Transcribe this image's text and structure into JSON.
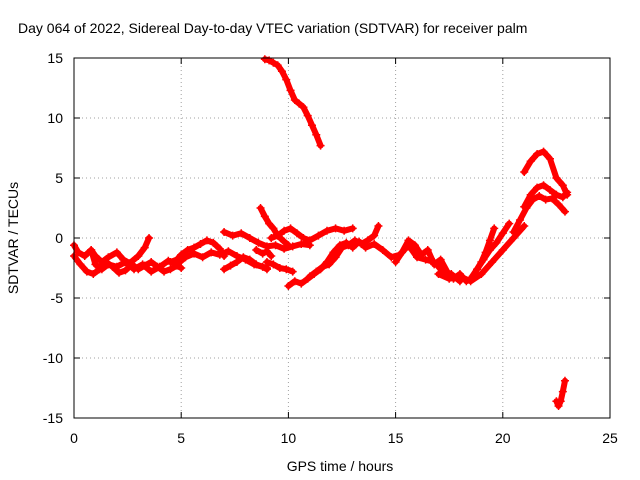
{
  "chart_data": {
    "type": "scatter",
    "title": "Day 064 of 2022, Sidereal Day-to-day VTEC variation (SDTVAR) for receiver palm",
    "xlabel": "GPS time / hours",
    "ylabel": "SDTVAR / TECUs",
    "xlim": [
      0,
      25
    ],
    "ylim": [
      -15,
      15
    ],
    "xticks": [
      0,
      5,
      10,
      15,
      20,
      25
    ],
    "yticks": [
      -15,
      -10,
      -5,
      0,
      5,
      10,
      15
    ],
    "grid": true,
    "marker_color": "#ff0000",
    "series": [
      {
        "name": "track-1",
        "x": [
          0.0,
          0.3,
          0.6,
          0.9,
          1.2,
          1.5,
          1.8,
          2.1,
          2.4,
          2.7,
          3.0,
          3.3,
          3.6,
          3.9,
          4.2,
          4.5,
          4.8,
          5.0
        ],
        "y": [
          -1.5,
          -2.2,
          -2.8,
          -3.0,
          -2.6,
          -2.0,
          -2.4,
          -2.9,
          -2.7,
          -2.2,
          -2.6,
          -2.3,
          -2.0,
          -2.4,
          -2.8,
          -2.6,
          -2.3,
          -2.5
        ]
      },
      {
        "name": "track-2",
        "x": [
          0.0,
          0.2,
          0.5,
          0.8,
          1.0,
          1.3,
          1.6,
          2.0,
          2.3,
          2.6,
          3.0,
          3.3,
          3.5
        ],
        "y": [
          -0.6,
          -1.2,
          -1.5,
          -1.0,
          -1.5,
          -2.0,
          -1.6,
          -1.2,
          -1.8,
          -2.1,
          -1.5,
          -0.8,
          0.0
        ]
      },
      {
        "name": "track-3",
        "x": [
          0.8,
          1.0,
          1.3,
          1.6,
          2.0,
          2.4,
          2.8,
          3.2,
          3.6,
          4.0,
          4.4,
          4.8,
          5.2,
          5.6,
          6.0,
          6.4,
          6.8,
          7.2,
          7.6,
          8.0,
          8.4,
          8.8,
          9.0
        ],
        "y": [
          -1.0,
          -2.2,
          -2.6,
          -2.2,
          -2.4,
          -2.0,
          -2.6,
          -2.2,
          -2.8,
          -2.4,
          -1.9,
          -2.2,
          -1.6,
          -1.3,
          -1.6,
          -1.2,
          -1.4,
          -1.1,
          -1.5,
          -1.8,
          -2.2,
          -2.4,
          -2.6
        ]
      },
      {
        "name": "track-4",
        "x": [
          4.5,
          4.8,
          5.0,
          5.3,
          5.6,
          5.9,
          6.2,
          6.5,
          6.8,
          7.0
        ],
        "y": [
          -2.0,
          -1.8,
          -1.4,
          -1.0,
          -0.8,
          -0.5,
          -0.2,
          -0.4,
          -0.9,
          -1.5
        ]
      },
      {
        "name": "track-5",
        "x": [
          7.0,
          7.3,
          7.6,
          7.9,
          8.2,
          8.5,
          8.8,
          9.0
        ],
        "y": [
          -2.6,
          -2.3,
          -2.0,
          -1.6,
          -1.8,
          -2.2,
          -2.4,
          -2.5
        ]
      },
      {
        "name": "track-6",
        "x": [
          7.0,
          7.4,
          7.8,
          8.2,
          8.6,
          9.0,
          9.4,
          9.8,
          10.2,
          10.6,
          11.0
        ],
        "y": [
          0.5,
          0.2,
          0.4,
          0.0,
          -0.4,
          -0.7,
          -0.6,
          -0.9,
          -0.7,
          -0.5,
          -0.6
        ]
      },
      {
        "name": "track-7",
        "x": [
          8.5,
          8.8,
          9.0,
          9.2
        ],
        "y": [
          -1.0,
          -1.3,
          -1.1,
          -1.5
        ]
      },
      {
        "name": "track-8",
        "x": [
          9.2,
          9.5,
          9.8,
          10.1,
          10.4,
          10.7,
          11.0,
          11.4,
          11.8,
          12.2,
          12.6,
          13.0
        ],
        "y": [
          0.0,
          0.2,
          0.6,
          0.8,
          0.4,
          0.0,
          -0.2,
          0.2,
          0.6,
          0.8,
          0.6,
          0.8
        ]
      },
      {
        "name": "track-9",
        "x": [
          8.7,
          8.9,
          9.1,
          9.3,
          9.5,
          9.8,
          10.0
        ],
        "y": [
          2.5,
          1.8,
          1.2,
          0.8,
          0.2,
          -0.3,
          -0.6
        ]
      },
      {
        "name": "track-10",
        "x": [
          9.0,
          9.3,
          9.6,
          9.9,
          10.2
        ],
        "y": [
          -2.0,
          -2.2,
          -2.5,
          -2.6,
          -2.8
        ]
      },
      {
        "name": "track-11",
        "x": [
          10.0,
          10.3,
          10.6,
          10.9,
          11.2,
          11.5,
          11.8,
          12.1,
          12.4,
          12.7,
          13.0,
          13.3,
          13.6,
          14.0,
          14.4,
          14.8,
          15.2,
          15.6,
          16.0,
          16.4,
          16.8,
          17.2,
          17.6,
          18.0
        ],
        "y": [
          -4.0,
          -3.6,
          -3.8,
          -3.4,
          -3.0,
          -2.6,
          -2.0,
          -1.2,
          -0.6,
          -0.4,
          -0.8,
          -0.3,
          -0.8,
          -0.5,
          -1.0,
          -1.6,
          -1.4,
          -0.6,
          -1.6,
          -1.8,
          -2.0,
          -2.8,
          -3.0,
          -3.6
        ]
      },
      {
        "name": "track-12",
        "x": [
          11.0,
          11.3,
          11.6,
          11.9,
          12.2,
          12.5,
          12.8,
          13.1,
          13.4,
          13.7,
          14.0,
          14.2
        ],
        "y": [
          -3.2,
          -2.8,
          -2.4,
          -2.2,
          -1.6,
          -0.8,
          -0.6,
          -0.2,
          -0.5,
          -0.2,
          0.2,
          1.0
        ]
      },
      {
        "name": "track-13",
        "x": [
          15.0,
          15.3,
          15.6,
          15.9,
          16.2,
          16.5,
          16.8,
          17.1,
          17.4,
          17.7,
          18.0,
          18.3,
          18.6
        ],
        "y": [
          -2.0,
          -1.2,
          -0.2,
          -0.6,
          -1.4,
          -1.0,
          -2.2,
          -1.8,
          -2.8,
          -3.4,
          -3.0,
          -3.6,
          -3.4
        ]
      },
      {
        "name": "track-14",
        "x": [
          17.0,
          17.5,
          18.0,
          18.5,
          19.0,
          19.5,
          20.0,
          20.5,
          21.0
        ],
        "y": [
          -3.0,
          -3.4,
          -3.2,
          -3.6,
          -3.0,
          -2.0,
          -1.0,
          0.0,
          1.0
        ]
      },
      {
        "name": "track-15",
        "x": [
          18.5,
          18.8,
          19.1,
          19.4,
          19.7,
          20.0,
          20.3
        ],
        "y": [
          -3.4,
          -2.6,
          -1.8,
          -1.0,
          -0.4,
          0.4,
          1.2
        ]
      },
      {
        "name": "track-16",
        "x": [
          18.6,
          18.8,
          19.0,
          19.2,
          19.4,
          19.6
        ],
        "y": [
          -3.2,
          -2.6,
          -2.0,
          -1.2,
          -0.2,
          0.8
        ]
      },
      {
        "name": "track-17",
        "x": [
          20.5,
          20.8,
          21.1,
          21.4,
          21.7,
          22.0,
          22.3,
          22.6,
          22.9
        ],
        "y": [
          0.5,
          1.5,
          2.5,
          3.2,
          3.5,
          3.2,
          3.3,
          2.8,
          2.2
        ]
      },
      {
        "name": "track-18",
        "x": [
          21.0,
          21.3,
          21.6,
          21.9,
          22.2,
          22.5,
          22.8,
          23.0
        ],
        "y": [
          2.6,
          3.6,
          4.2,
          4.4,
          4.0,
          3.6,
          3.4,
          3.8
        ]
      },
      {
        "name": "track-19",
        "x": [
          21.0,
          21.3,
          21.6,
          21.9,
          22.2,
          22.5,
          22.8,
          23.0
        ],
        "y": [
          5.5,
          6.4,
          7.0,
          7.2,
          6.6,
          5.0,
          4.4,
          3.6
        ]
      },
      {
        "name": "track-20",
        "x": [
          8.9,
          9.1,
          9.3,
          9.5,
          9.7,
          9.9,
          10.1,
          10.3,
          10.5,
          10.7,
          10.9,
          11.1,
          11.3,
          11.5
        ],
        "y": [
          14.9,
          14.8,
          14.6,
          14.4,
          13.9,
          13.2,
          12.3,
          11.5,
          11.2,
          10.9,
          10.2,
          9.4,
          8.6,
          7.7
        ]
      },
      {
        "name": "track-21",
        "x": [
          22.5,
          22.6,
          22.7,
          22.8,
          22.9
        ],
        "y": [
          -13.6,
          -14.0,
          -13.6,
          -12.8,
          -11.9
        ]
      }
    ]
  }
}
